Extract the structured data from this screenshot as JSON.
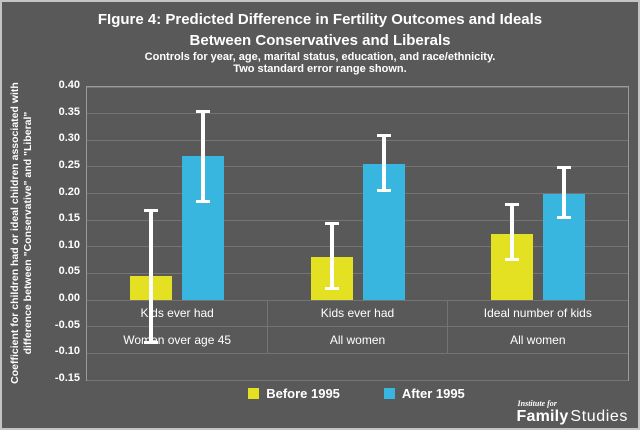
{
  "chart_data": {
    "type": "bar",
    "title_line1": "FIgure 4: Predicted Difference in Fertility Outcomes and Ideals",
    "title_line2": "Between Conservatives and Liberals",
    "subtitle_line1": "Controls for year, age, marital status, education, and race/ethnicity.",
    "subtitle_line2": "Two standard error range shown.",
    "ylabel_line1": "Coefficient for children had or ideal children associated with",
    "ylabel_line2": "difference between \"Conservative\" and \"Liberal\"",
    "ylim": [
      -0.15,
      0.4
    ],
    "yticks": [
      0.4,
      0.35,
      0.3,
      0.25,
      0.2,
      0.15,
      0.1,
      0.05,
      0.0,
      -0.05,
      -0.1,
      -0.15
    ],
    "grid": true,
    "legend_position": "bottom",
    "categories": [
      {
        "measure": "Kids ever had",
        "population": "Women over age 45"
      },
      {
        "measure": "Kids ever had",
        "population": "All women"
      },
      {
        "measure": "Ideal number of kids",
        "population": "All women"
      }
    ],
    "series": [
      {
        "name": "Before 1995",
        "color": "#e4e122",
        "values": [
          0.045,
          0.08,
          0.125
        ],
        "error_low": [
          -0.08,
          0.02,
          0.075
        ],
        "error_high": [
          0.17,
          0.145,
          0.18
        ]
      },
      {
        "name": "After 1995",
        "color": "#38b6e0",
        "values": [
          0.27,
          0.255,
          0.2
        ],
        "error_low": [
          0.185,
          0.205,
          0.155
        ],
        "error_high": [
          0.355,
          0.31,
          0.25
        ]
      }
    ]
  },
  "logo": {
    "prefix": "Institute for",
    "bold": "Family",
    "rest": "Studies"
  },
  "colors": {
    "background": "#595959",
    "gridline": "#747474",
    "plot_border": "#9a9a9a",
    "text": "#ffffff",
    "before_1995": "#e4e122",
    "after_1995": "#38b6e0",
    "error_bar": "#ffffff"
  }
}
